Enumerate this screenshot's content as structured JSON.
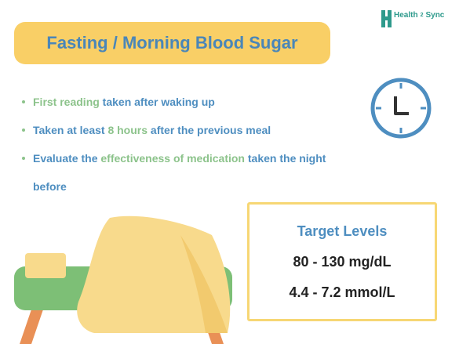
{
  "brand": {
    "name": "Health",
    "number": "2",
    "suffix": "Sync"
  },
  "title": "Fasting / Morning Blood Sugar",
  "bullets": [
    {
      "segments": [
        {
          "text": "First reading",
          "color": "#8cc38b"
        },
        {
          "text": " taken after waking up",
          "color": "#4e8ec0"
        }
      ]
    },
    {
      "segments": [
        {
          "text": "Taken at least ",
          "color": "#4e8ec0"
        },
        {
          "text": "8 hours",
          "color": "#8cc38b"
        },
        {
          "text": " after the previous meal",
          "color": "#4e8ec0"
        }
      ]
    },
    {
      "segments": [
        {
          "text": "Evaluate the ",
          "color": "#4e8ec0"
        },
        {
          "text": "effectiveness of medication",
          "color": "#8cc38b"
        },
        {
          "text": " taken the night before",
          "color": "#4e8ec0"
        }
      ]
    }
  ],
  "target": {
    "heading": "Target Levels",
    "levels": [
      "80 - 130 mg/dL",
      "4.4 - 7.2 mmol/L"
    ]
  }
}
